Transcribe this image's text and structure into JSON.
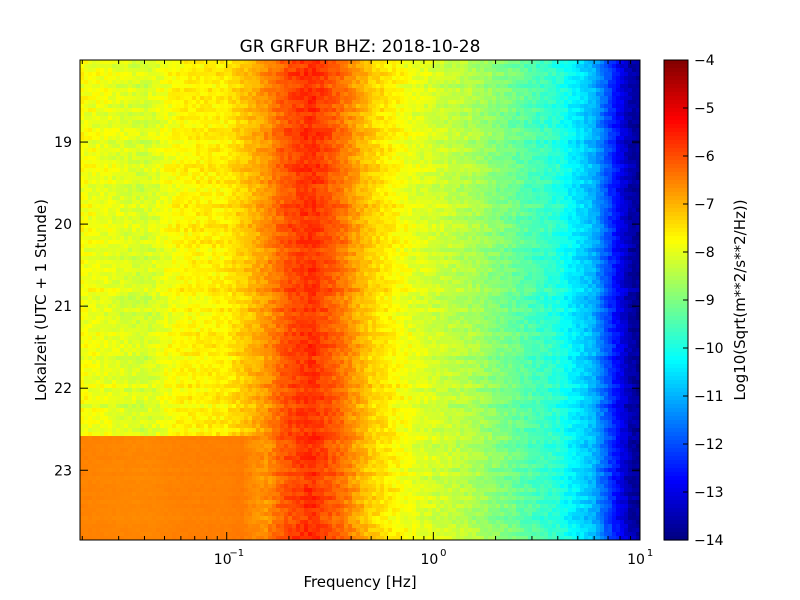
{
  "chart_data": {
    "type": "heatmap",
    "title": "GR GRFUR BHZ: 2018-10-28",
    "xlabel": "Frequency [Hz]",
    "ylabel": "Lokalzeit (UTC + 1 Stunde)",
    "x_scale": "log",
    "x_range": [
      0.0195,
      10
    ],
    "x_ticks": [
      {
        "value": 0.1,
        "base": "10",
        "exp": "−1"
      },
      {
        "value": 1,
        "base": "10",
        "exp": "0"
      },
      {
        "value": 10,
        "base": "10",
        "exp": "1"
      }
    ],
    "y_range": [
      18.0,
      23.85
    ],
    "y_inverted": true,
    "y_ticks": [
      "19",
      "20",
      "21",
      "22",
      "23"
    ],
    "colorbar": {
      "label": "Log10(Sqrt(m**2/s**2/Hz))",
      "range": [
        -14,
        -4
      ],
      "ticks": [
        "−4",
        "−5",
        "−6",
        "−7",
        "−8",
        "−9",
        "−10",
        "−11",
        "−12",
        "−13",
        "−14"
      ],
      "colormap": "jet"
    },
    "spectrum_profile": [
      {
        "freq": 0.0195,
        "value": -7.8
      },
      {
        "freq": 0.04,
        "value": -8.2
      },
      {
        "freq": 0.06,
        "value": -7.7
      },
      {
        "freq": 0.1,
        "value": -7.6
      },
      {
        "freq": 0.15,
        "value": -6.8
      },
      {
        "freq": 0.2,
        "value": -6.0
      },
      {
        "freq": 0.26,
        "value": -5.7
      },
      {
        "freq": 0.35,
        "value": -6.3
      },
      {
        "freq": 0.5,
        "value": -7.3
      },
      {
        "freq": 0.8,
        "value": -8.0
      },
      {
        "freq": 1.5,
        "value": -8.5
      },
      {
        "freq": 2.5,
        "value": -9.2
      },
      {
        "freq": 4.0,
        "value": -9.9
      },
      {
        "freq": 6.0,
        "value": -11.0
      },
      {
        "freq": 7.5,
        "value": -12.5
      },
      {
        "freq": 9.0,
        "value": -13.6
      },
      {
        "freq": 10,
        "value": -13.8
      }
    ],
    "events": [
      {
        "time_start": 22.6,
        "time_end": 23.85,
        "freq_max": 0.15,
        "value": -6.3
      }
    ]
  }
}
